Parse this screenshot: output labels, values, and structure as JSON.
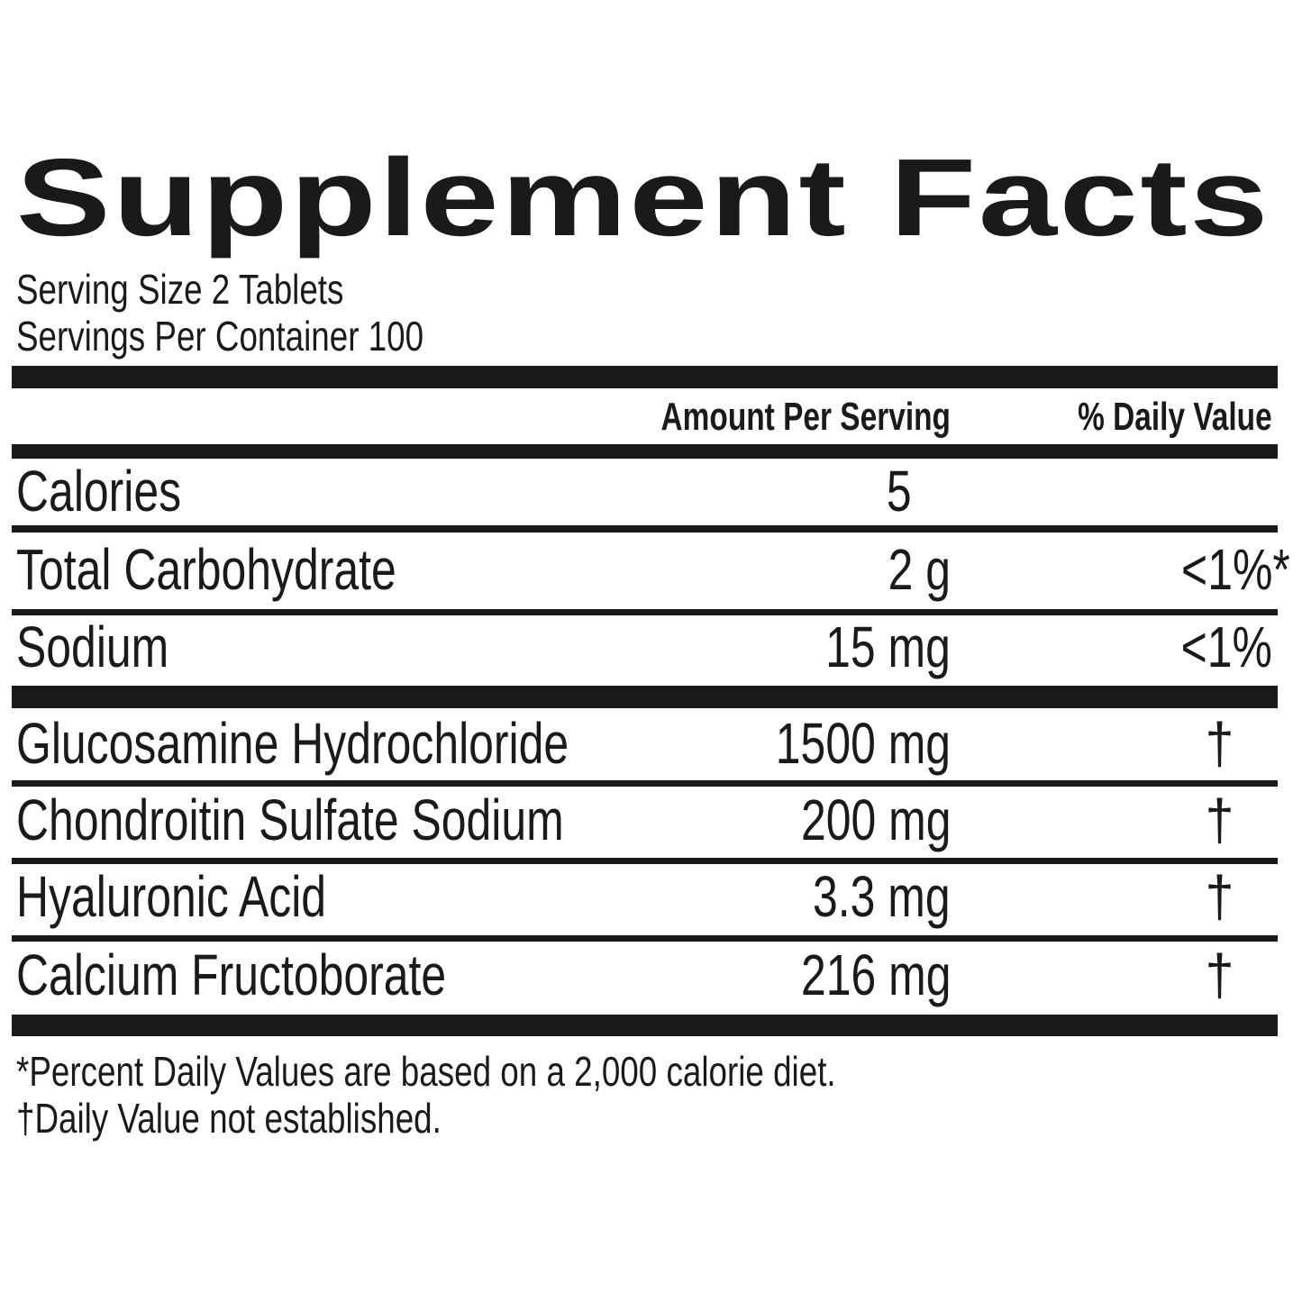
{
  "title": "Supplement Facts",
  "serving_size": "Serving Size 2 Tablets",
  "servings_per_container": "Servings Per Container 100",
  "header": {
    "amount": "Amount Per Serving",
    "daily_value": "% Daily Value"
  },
  "rows": [
    {
      "name": "Calories",
      "amount": "5",
      "dv": ""
    },
    {
      "name": "Total Carbohydrate",
      "amount": "2 g",
      "dv": "<1%*"
    },
    {
      "name": "Sodium",
      "amount": "15 mg",
      "dv": "<1%"
    },
    {
      "name": "Glucosamine Hydrochloride",
      "amount": "1500 mg",
      "dv": "†"
    },
    {
      "name": "Chondroitin Sulfate Sodium",
      "amount": "200 mg",
      "dv": "†"
    },
    {
      "name": "Hyaluronic Acid",
      "amount": "3.3 mg",
      "dv": "†"
    },
    {
      "name": "Calcium Fructoborate",
      "amount": "216 mg",
      "dv": "†"
    }
  ],
  "footnotes": [
    "*Percent Daily Values are based on a 2,000 calorie diet.",
    "†Daily Value not established."
  ]
}
